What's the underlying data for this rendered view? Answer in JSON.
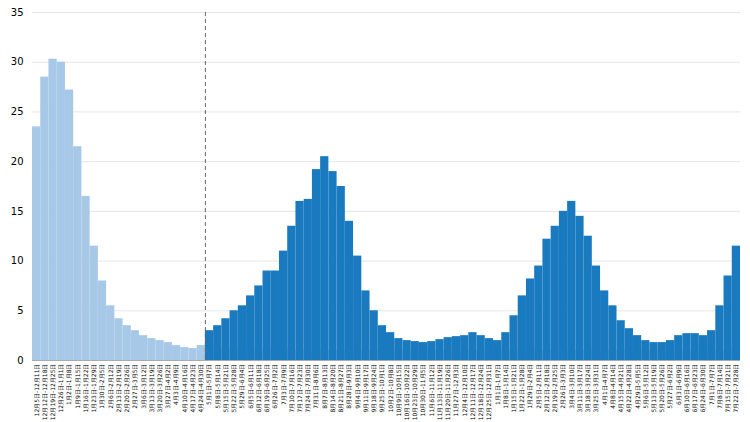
{
  "chart_data": {
    "type": "bar",
    "categories": [
      "12月5日\n-12月11日",
      "12月12日\n-12月18日",
      "12月19日\n-12月25日",
      "12月26日\n-1月1日",
      "1月2日\n-1月8日",
      "1月9日\n-1月15日",
      "1月16日\n-1月22日",
      "1月23日\n-1月29日",
      "1月30日\n-2月5日",
      "2月6日\n-2月12日",
      "2月13日\n-2月19日",
      "2月20日\n-2月26日",
      "2月27日\n-3月5日",
      "3月6日\n-3月12日",
      "3月13日\n-3月19日",
      "3月20日\n-3月26日",
      "3月27日\n-4月2日",
      "4月3日\n-4月9日",
      "4月10日\n-4月16日",
      "4月17日\n-4月23日",
      "4月24日\n-4月30日",
      "5月1日\n-5月7日",
      "5月8日\n-5月14日",
      "5月15日\n-5月21日",
      "5月22日\n-5月28日",
      "5月29日\n-6月4日",
      "6月5日\n-6月11日",
      "6月12日\n-6月18日",
      "6月19日\n-6月25日",
      "6月26日\n-7月2日",
      "7月3日\n-7月9日",
      "7月10日\n-7月16日",
      "7月17日\n-7月23日",
      "7月24日\n-7月30日",
      "7月31日\n-8月6日",
      "8月7日\n-8月13日",
      "8月14日\n-8月20日",
      "8月21日\n-8月27日",
      "8月28日\n-9月3日",
      "9月4日\n-9月10日",
      "9月11日\n-9月17日",
      "9月18日\n-9月24日",
      "9月25日\n-10月1日",
      "10月2日\n-10月8日",
      "10月9日\n-10月15日",
      "10月16日\n-10月22日",
      "10月23日\n-10月29日",
      "10月30日\n-11月5日",
      "11月6日\n-11月12日",
      "11月13日\n-11月19日",
      "11月20日\n-11月26日",
      "11月27日\n-12月3日",
      "12月4日\n-12月10日",
      "12月11日\n-12月17日",
      "12月18日\n-12月24日",
      "12月25日\n-12月31日",
      "1月1日\n-1月7日",
      "1月8日\n-1月14日",
      "1月15日\n-1月21日",
      "1月22日\n-1月28日",
      "1月29日\n-2月4日",
      "2月5日\n-2月11日",
      "2月12日\n-2月18日",
      "2月19日\n-2月25日",
      "2月26日\n-3月3日",
      "3月4日\n-3月10日",
      "3月11日\n-3月17日",
      "3月18日\n-3月24日",
      "3月25日\n-3月31日",
      "4月1日\n-4月7日",
      "4月8日\n-4月14日",
      "4月15日\n-4月21日",
      "4月22日\n-4月28日",
      "4月29日\n-5月5日",
      "5月6日\n-5月12日",
      "5月13日\n-5月19日",
      "5月20日\n-5月26日",
      "5月27日\n-6月2日",
      "6月3日\n-6月9日",
      "6月10日\n-6月16日",
      "6月17日\n-6月23日",
      "6月24日\n-6月30日",
      "7月1日\n-7月7日",
      "7月8日\n-7月14日",
      "7月15日\n-7月21日",
      "7月22日\n-7月28日"
    ],
    "series": [
      {
        "color": "#a8c8e8",
        "values": [
          23.5,
          28.5,
          30.3,
          30.0,
          27.2,
          21.5,
          16.5,
          11.5,
          8.0,
          5.5,
          4.2,
          3.5,
          3.0,
          2.5,
          2.2,
          2.0,
          1.8,
          1.5,
          1.3,
          1.2,
          1.5,
          1.5,
          1.3,
          1.2,
          1.1,
          1.1,
          1.1,
          1.1,
          1.1,
          1.1,
          1.1,
          1.1,
          1.0,
          1.0,
          1.0,
          1.0,
          1.0,
          1.0,
          1.0,
          1.0,
          1.0,
          1.0,
          1.0,
          1.0,
          1.0,
          1.0,
          1.0,
          1.0,
          1.0,
          1.0,
          1.0,
          1.0,
          1.0,
          1.0,
          1.0,
          1.0,
          1.0,
          1.0,
          1.0,
          1.0,
          1.0,
          1.0,
          1.0,
          1.0,
          1.0,
          1.0,
          1.0,
          1.0,
          1.0,
          1.0,
          1.0,
          1.0,
          1.0,
          1.0,
          1.0,
          1.0,
          1.0,
          1.0,
          1.0,
          1.0,
          1.0,
          1.0,
          1.0,
          1.0,
          1.0,
          1.0
        ]
      },
      {
        "color": "#1a7abf",
        "values": [
          0,
          0,
          0,
          0,
          0,
          0,
          0,
          0,
          0,
          0,
          0,
          0,
          0,
          0,
          0,
          0,
          0,
          0,
          0,
          0,
          0,
          3.0,
          3.5,
          4.2,
          5.0,
          5.5,
          6.5,
          7.5,
          9.0,
          9.0,
          11.0,
          13.5,
          16.0,
          16.2,
          19.2,
          20.5,
          19.0,
          17.5,
          14.0,
          10.5,
          7.0,
          5.0,
          3.5,
          2.8,
          2.2,
          2.0,
          1.9,
          1.8,
          1.9,
          2.1,
          2.3,
          2.4,
          2.5,
          2.8,
          2.5,
          2.2,
          2.0,
          2.8,
          4.5,
          6.5,
          8.2,
          9.5,
          12.2,
          13.5,
          15.0,
          16.0,
          14.5,
          12.5,
          9.5,
          7.0,
          5.5,
          4.0,
          3.2,
          2.5,
          2.0,
          1.8,
          1.8,
          2.0,
          2.5,
          2.7,
          2.7,
          2.5,
          3.0,
          5.5,
          8.5,
          11.5
        ]
      }
    ],
    "ylim": [
      0,
      35
    ],
    "yticks": [
      0,
      5,
      10,
      15,
      20,
      25,
      30,
      35
    ],
    "grid": true,
    "reference_line": {
      "before_category": "5月1日\n-5月7日",
      "color": "#666666",
      "line_style": "dashed"
    }
  }
}
